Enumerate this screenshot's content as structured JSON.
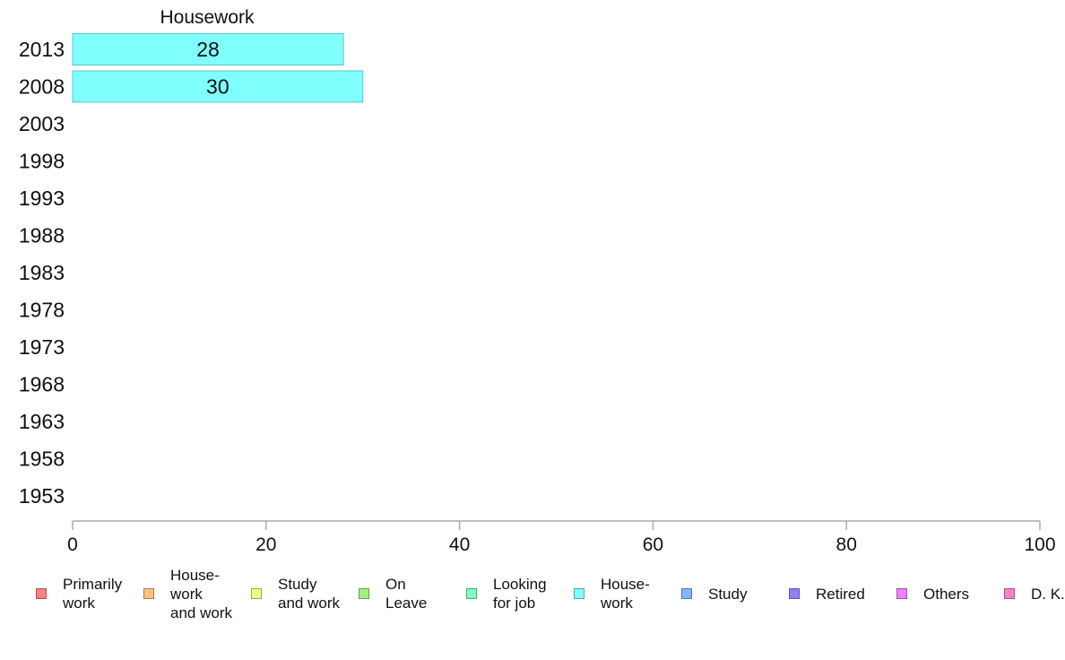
{
  "chart_data": {
    "type": "bar",
    "orientation": "horizontal",
    "title": "Housework",
    "categories": [
      "2013",
      "2008",
      "2003",
      "1998",
      "1993",
      "1988",
      "1983",
      "1978",
      "1973",
      "1968",
      "1963",
      "1958",
      "1953"
    ],
    "values": [
      28,
      30,
      null,
      null,
      null,
      null,
      null,
      null,
      null,
      null,
      null,
      null,
      null
    ],
    "bar_color": "#80ffff",
    "bar_border_color": "#5cc4c4",
    "xlim": [
      0,
      100
    ],
    "xticks": [
      "0",
      "20",
      "40",
      "60",
      "80",
      "100"
    ],
    "grid": false,
    "legend_position": "bottom",
    "legend": [
      {
        "label": "Primarily\nwork",
        "color": "#ff8080"
      },
      {
        "label": "House-\nwork\nand work",
        "color": "#ffc080"
      },
      {
        "label": "Study\nand work",
        "color": "#f0ff80"
      },
      {
        "label": "On\nLeave",
        "color": "#a0f080"
      },
      {
        "label": "Looking\nfor job",
        "color": "#80ffc0"
      },
      {
        "label": "House-\nwork",
        "color": "#80ffff"
      },
      {
        "label": "Study",
        "color": "#80b8ff"
      },
      {
        "label": "Retired",
        "color": "#9080ff"
      },
      {
        "label": "Others",
        "color": "#f080ff"
      },
      {
        "label": "D. K.",
        "color": "#ff80c8"
      }
    ]
  }
}
